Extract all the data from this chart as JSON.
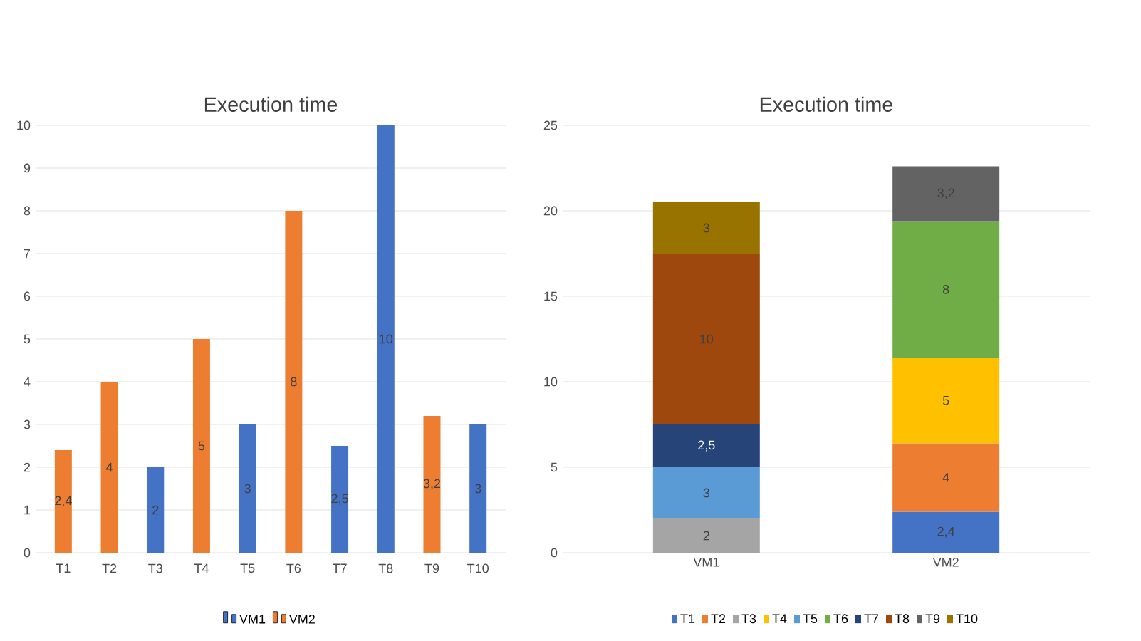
{
  "chart_data": [
    {
      "type": "bar",
      "title": "Execution time",
      "categories": [
        "T1",
        "T2",
        "T3",
        "T4",
        "T5",
        "T6",
        "T7",
        "T8",
        "T9",
        "T10"
      ],
      "ylim": [
        0,
        10
      ],
      "yticks": [
        0,
        1,
        2,
        3,
        4,
        5,
        6,
        7,
        8,
        9,
        10
      ],
      "grid": "y",
      "legend": "bottom",
      "series": [
        {
          "name": "VM1",
          "color": "#4472c4",
          "values": [
            null,
            null,
            2,
            null,
            3,
            null,
            2.5,
            10,
            null,
            3
          ],
          "value_labels": [
            null,
            null,
            "2",
            null,
            "3",
            null,
            "2,5",
            "10",
            null,
            "3"
          ]
        },
        {
          "name": "VM2",
          "color": "#ed7d31",
          "values": [
            2.4,
            4,
            null,
            5,
            null,
            8,
            null,
            null,
            3.2,
            null
          ],
          "value_labels": [
            "2,4",
            "4",
            null,
            "5",
            null,
            "8",
            null,
            null,
            "3,2",
            null
          ]
        }
      ]
    },
    {
      "type": "bar",
      "stacked": true,
      "title": "Execution time",
      "categories": [
        "VM1",
        "VM2"
      ],
      "ylim": [
        0,
        25
      ],
      "yticks": [
        0,
        5,
        10,
        15,
        20,
        25
      ],
      "grid": "y",
      "legend": "bottom",
      "series": [
        {
          "name": "T1",
          "color": "#4472c4",
          "values": [
            null,
            2.4
          ],
          "value_labels": [
            null,
            "2,4"
          ]
        },
        {
          "name": "T2",
          "color": "#ed7d31",
          "values": [
            null,
            4
          ],
          "value_labels": [
            null,
            "4"
          ]
        },
        {
          "name": "T3",
          "color": "#a5a5a5",
          "values": [
            2,
            null
          ],
          "value_labels": [
            "2",
            null
          ]
        },
        {
          "name": "T4",
          "color": "#ffc000",
          "values": [
            null,
            5
          ],
          "value_labels": [
            null,
            "5"
          ]
        },
        {
          "name": "T5",
          "color": "#5b9bd5",
          "values": [
            3,
            null
          ],
          "value_labels": [
            "3",
            null
          ]
        },
        {
          "name": "T6",
          "color": "#70ad47",
          "values": [
            null,
            8
          ],
          "value_labels": [
            null,
            "8"
          ]
        },
        {
          "name": "T7",
          "color": "#264478",
          "values": [
            2.5,
            null
          ],
          "value_labels": [
            "2,5",
            null
          ]
        },
        {
          "name": "T8",
          "color": "#9e480e",
          "values": [
            10,
            null
          ],
          "value_labels": [
            "10",
            null
          ]
        },
        {
          "name": "T9",
          "color": "#636363",
          "values": [
            null,
            3.2
          ],
          "value_labels": [
            null,
            "3,2"
          ]
        },
        {
          "name": "T10",
          "color": "#997300",
          "values": [
            3,
            null
          ],
          "value_labels": [
            "3",
            null
          ]
        }
      ]
    }
  ]
}
